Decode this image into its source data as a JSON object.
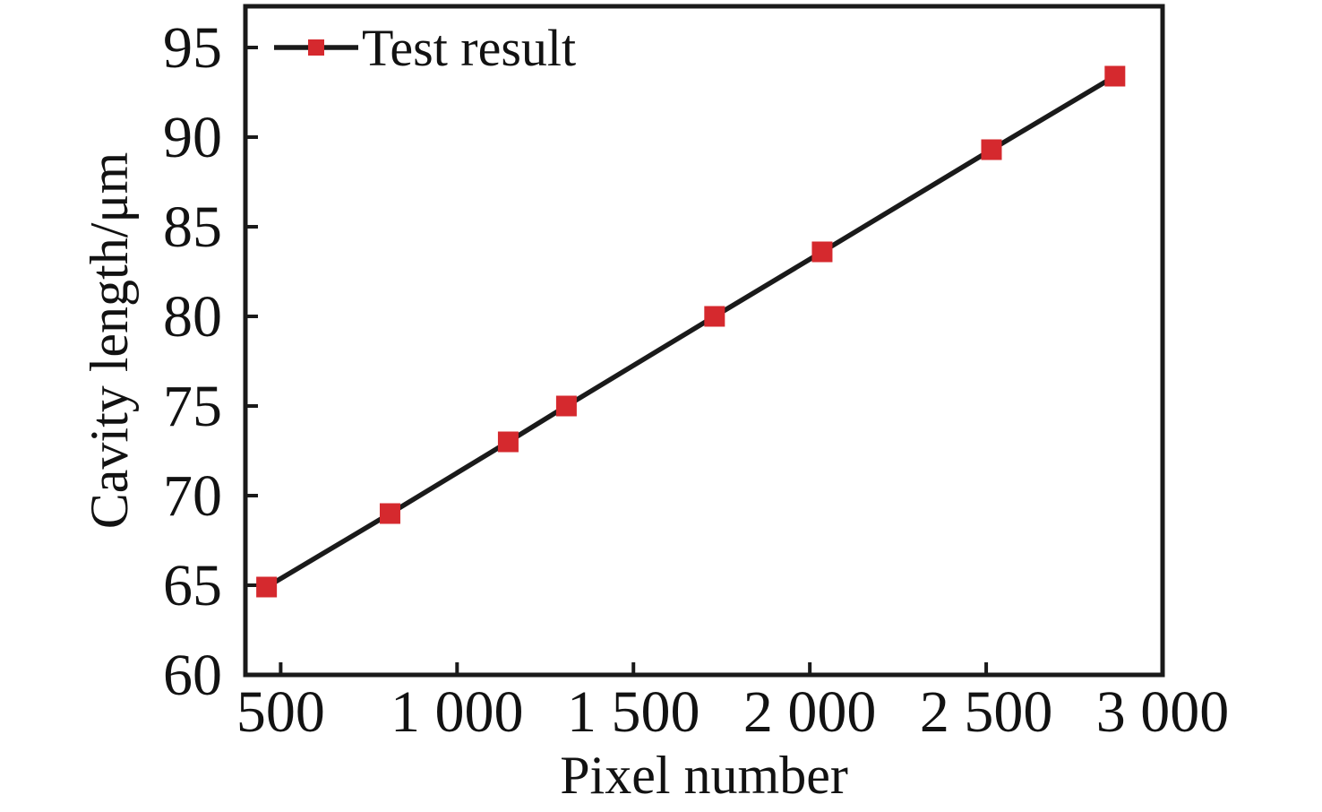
{
  "chart_data": {
    "type": "line",
    "xlabel": "Pixel number",
    "ylabel": "Cavity length/μm",
    "xlim": [
      400,
      3000
    ],
    "ylim": [
      60,
      97.3
    ],
    "x_ticks": [
      500,
      1000,
      1500,
      2000,
      2500,
      3000
    ],
    "x_tick_labels": [
      "500",
      "1 000",
      "1 500",
      "2 000",
      "2 500",
      "3 000"
    ],
    "y_ticks": [
      60,
      65,
      70,
      75,
      80,
      85,
      90,
      95
    ],
    "y_tick_labels": [
      "60",
      "65",
      "70",
      "75",
      "80",
      "85",
      "90",
      "95"
    ],
    "grid": false,
    "legend_position": "top-left-inside",
    "axis_color": "#1a1a1a",
    "text_color": "#121212",
    "background_color": "#ffffff",
    "series": [
      {
        "name": "Test result",
        "marker": "square",
        "marker_color": "#d5292e",
        "line_color": "#1a1a1a",
        "points": [
          [
            460,
            64.9
          ],
          [
            810,
            69.0
          ],
          [
            1145,
            73.0
          ],
          [
            1310,
            75.0
          ],
          [
            1730,
            80.0
          ],
          [
            2035,
            83.6
          ],
          [
            2515,
            89.3
          ],
          [
            2865,
            93.4
          ]
        ]
      }
    ]
  }
}
